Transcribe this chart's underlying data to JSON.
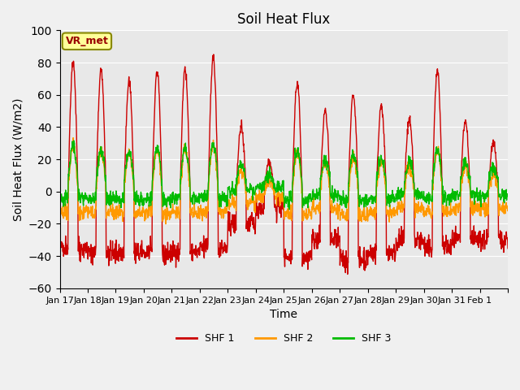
{
  "title": "Soil Heat Flux",
  "xlabel": "Time",
  "ylabel": "Soil Heat Flux (W/m2)",
  "ylim": [
    -60,
    100
  ],
  "yticks": [
    -60,
    -40,
    -20,
    0,
    20,
    40,
    60,
    80,
    100
  ],
  "xtick_positions": [
    0,
    1,
    2,
    3,
    4,
    5,
    6,
    7,
    8,
    9,
    10,
    11,
    12,
    13,
    14,
    15,
    16
  ],
  "xtick_labels": [
    "Jan 17",
    "Jan 18",
    "Jan 19",
    "Jan 20",
    "Jan 21",
    "Jan 22",
    "Jan 23",
    "Jan 24",
    "Jan 25",
    "Jan 26",
    "Jan 27",
    "Jan 28",
    "Jan 29",
    "Jan 30",
    "Jan 31",
    "Feb 1",
    ""
  ],
  "shf1_color": "#cc0000",
  "shf2_color": "#ff9900",
  "shf3_color": "#00bb00",
  "bg_color": "#e8e8e8",
  "fig_color": "#f0f0f0",
  "annotation_text": "VR_met",
  "annotation_facecolor": "#ffff99",
  "annotation_edgecolor": "#888800",
  "linewidth": 1.0,
  "legend_labels": [
    "SHF 1",
    "SHF 2",
    "SHF 3"
  ],
  "n_days": 16,
  "pts_per_day": 96,
  "day_amps": [
    80,
    75,
    68,
    75,
    76,
    83,
    40,
    18,
    68,
    50,
    60,
    53,
    45,
    75,
    44,
    30
  ],
  "night_depth": [
    -35,
    -38,
    -38,
    -38,
    -38,
    -35,
    -20,
    -10,
    -40,
    -30,
    -42,
    -38,
    -30,
    -35,
    -30,
    -30
  ]
}
